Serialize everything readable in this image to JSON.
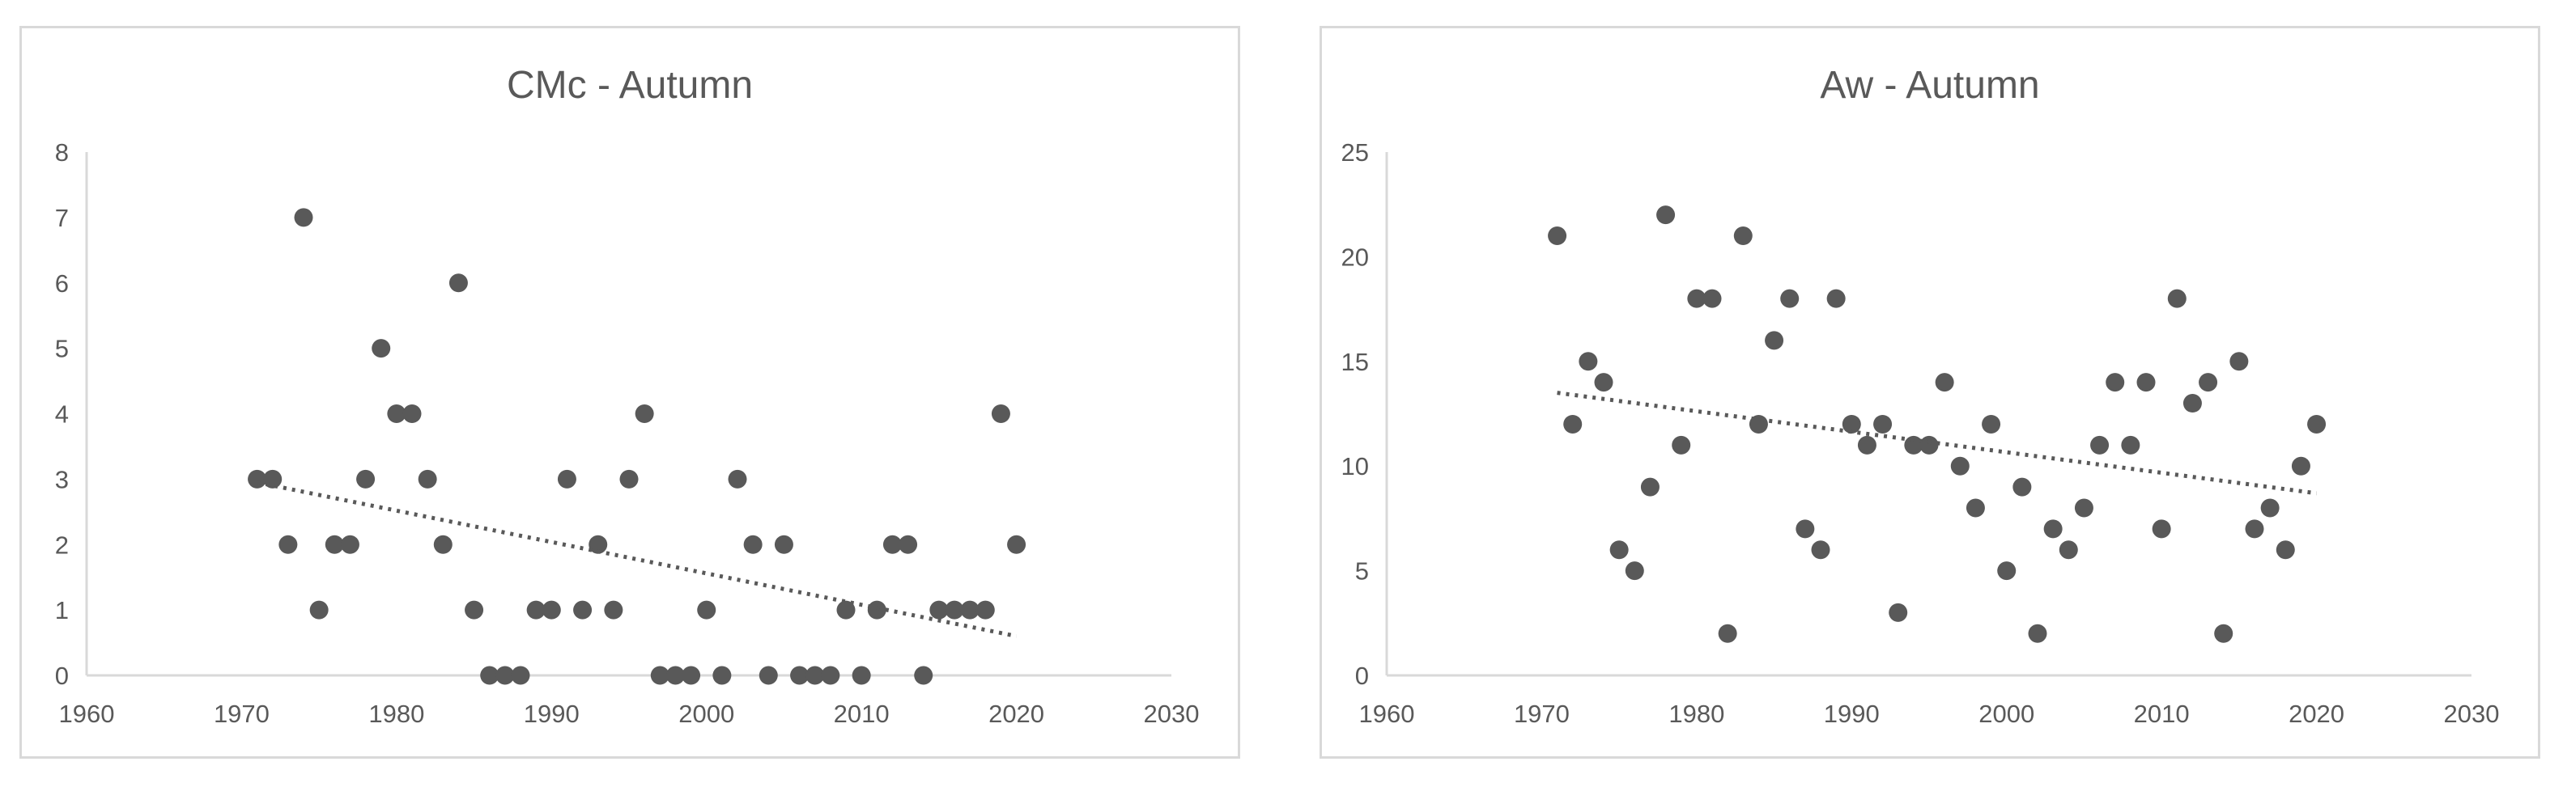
{
  "chart_data": [
    {
      "type": "scatter",
      "title": "CMc - Autumn",
      "xlim": [
        1960,
        2030
      ],
      "ylim": [
        0,
        8
      ],
      "xticks": [
        1960,
        1970,
        1980,
        1990,
        2000,
        2010,
        2020,
        2030
      ],
      "yticks": [
        0,
        1,
        2,
        3,
        4,
        5,
        6,
        7,
        8
      ],
      "grid": false,
      "trendline": {
        "type": "linear",
        "style": "dotted",
        "x": [
          1971,
          2020
        ],
        "y": [
          2.95,
          0.6
        ]
      },
      "series": [
        {
          "x": [
            1971,
            1972,
            1973,
            1974,
            1975,
            1976,
            1977,
            1978,
            1979,
            1980,
            1981,
            1982,
            1983,
            1984,
            1985,
            1986,
            1987,
            1988,
            1989,
            1990,
            1991,
            1992,
            1993,
            1994,
            1995,
            1996,
            1997,
            1998,
            1999,
            2000,
            2001,
            2002,
            2003,
            2004,
            2005,
            2006,
            2007,
            2008,
            2009,
            2010,
            2011,
            2012,
            2013,
            2014,
            2015,
            2016,
            2017,
            2018,
            2019,
            2020
          ],
          "y": [
            3,
            3,
            2,
            7,
            1,
            2,
            2,
            3,
            5,
            4,
            4,
            3,
            2,
            6,
            1,
            0,
            0,
            0,
            1,
            1,
            3,
            1,
            2,
            1,
            3,
            4,
            0,
            0,
            0,
            1,
            0,
            3,
            2,
            0,
            2,
            0,
            0,
            0,
            1,
            0,
            1,
            2,
            2,
            0,
            1,
            1,
            1,
            1,
            4,
            2
          ]
        }
      ]
    },
    {
      "type": "scatter",
      "title": "Aw - Autumn",
      "xlim": [
        1960,
        2030
      ],
      "ylim": [
        0,
        25
      ],
      "xticks": [
        1960,
        1970,
        1980,
        1990,
        2000,
        2010,
        2020,
        2030
      ],
      "yticks": [
        0,
        5,
        10,
        15,
        20,
        25
      ],
      "grid": false,
      "trendline": {
        "type": "linear",
        "style": "dotted",
        "x": [
          1971,
          2020
        ],
        "y": [
          13.5,
          8.7
        ]
      },
      "series": [
        {
          "x": [
            1971,
            1972,
            1973,
            1974,
            1975,
            1976,
            1977,
            1978,
            1979,
            1980,
            1981,
            1982,
            1983,
            1984,
            1985,
            1986,
            1987,
            1988,
            1989,
            1990,
            1991,
            1992,
            1993,
            1994,
            1995,
            1996,
            1997,
            1998,
            1999,
            2000,
            2001,
            2002,
            2003,
            2004,
            2005,
            2006,
            2007,
            2008,
            2009,
            2010,
            2011,
            2012,
            2013,
            2014,
            2015,
            2016,
            2017,
            2018,
            2019,
            2020
          ],
          "y": [
            21,
            12,
            15,
            14,
            6,
            5,
            9,
            22,
            11,
            18,
            18,
            2,
            21,
            12,
            16,
            18,
            7,
            6,
            18,
            12,
            11,
            12,
            3,
            11,
            11,
            14,
            10,
            8,
            12,
            5,
            9,
            2,
            7,
            6,
            8,
            11,
            14,
            11,
            14,
            7,
            18,
            13,
            14,
            2,
            15,
            7,
            8,
            6,
            10,
            12
          ]
        }
      ]
    }
  ]
}
